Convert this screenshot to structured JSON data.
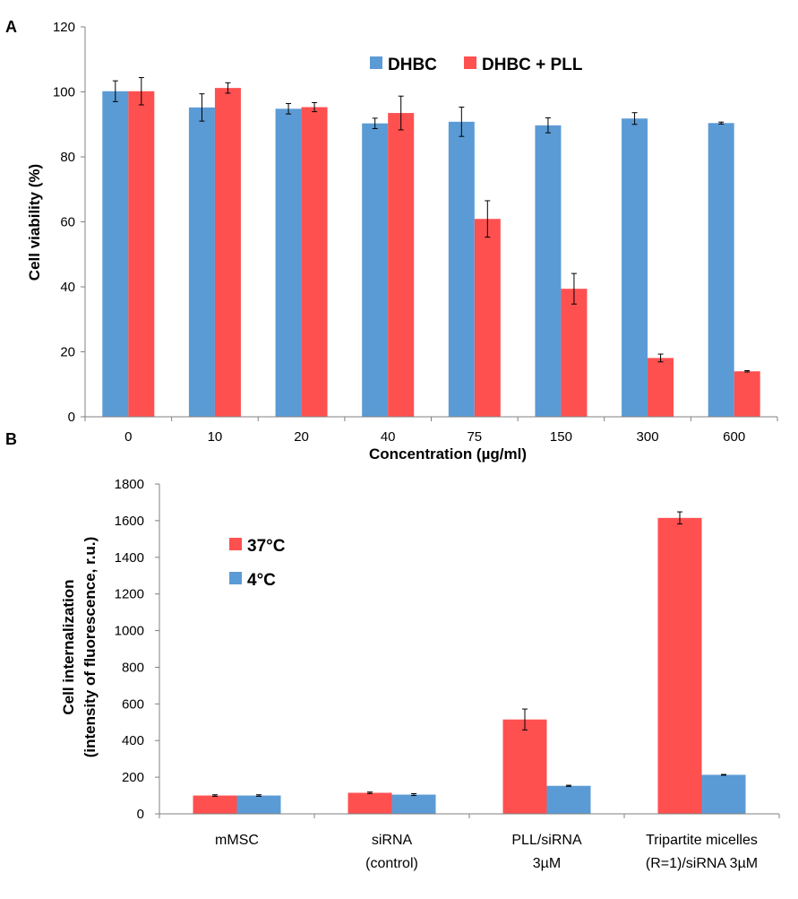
{
  "chart_data": [
    {
      "panel": "A",
      "type": "bar",
      "xlabel": "Concentration (µg/ml)",
      "ylabel": "Cell viability (%)",
      "ylim": [
        0,
        120
      ],
      "yticks": [
        "0",
        "20",
        "40",
        "60",
        "80",
        "100",
        "120"
      ],
      "categories": [
        "0",
        "10",
        "20",
        "40",
        "75",
        "150",
        "300",
        "600"
      ],
      "grid": false,
      "legend": "top-center",
      "series": [
        {
          "name": "DHBC",
          "color": "#5b9bd5",
          "values": [
            100.2,
            95.2,
            94.8,
            90.3,
            90.8,
            89.7,
            91.8,
            90.4
          ],
          "errors": [
            3.2,
            4.2,
            1.6,
            1.6,
            4.5,
            2.3,
            1.8,
            0.3
          ]
        },
        {
          "name": "DHBC + PLL",
          "color": "#ff5050",
          "values": [
            100.2,
            101.2,
            95.3,
            93.5,
            60.9,
            39.4,
            18.1,
            14.0
          ],
          "errors": [
            4.2,
            1.6,
            1.4,
            5.2,
            5.6,
            4.7,
            1.2,
            0.2
          ]
        }
      ]
    },
    {
      "panel": "B",
      "type": "bar",
      "xlabel": "",
      "ylabel_lines": [
        "Cell internalization",
        "(intensity of fluorescence, r.u.)"
      ],
      "ylim": [
        0,
        1800
      ],
      "yticks": [
        "0",
        "200",
        "400",
        "600",
        "800",
        "1000",
        "1200",
        "1400",
        "1600",
        "1800"
      ],
      "category_lines": [
        [
          "mMSC"
        ],
        [
          "siRNA",
          "(control)"
        ],
        [
          "PLL/siRNA",
          "3µM"
        ],
        [
          "Tripartite micelles",
          "(R=1)/siRNA 3µM"
        ]
      ],
      "grid": false,
      "legend": "top-left",
      "series": [
        {
          "name": "37°C",
          "color": "#ff5050",
          "values": [
            100,
            115,
            515,
            1615
          ],
          "errors": [
            4,
            4,
            57,
            33
          ]
        },
        {
          "name": "4°C",
          "color": "#5b9bd5",
          "values": [
            100,
            105,
            153,
            213
          ],
          "errors": [
            4,
            5,
            3,
            2
          ]
        }
      ]
    }
  ],
  "labels": {
    "panel_a": "A",
    "panel_b": "B"
  }
}
